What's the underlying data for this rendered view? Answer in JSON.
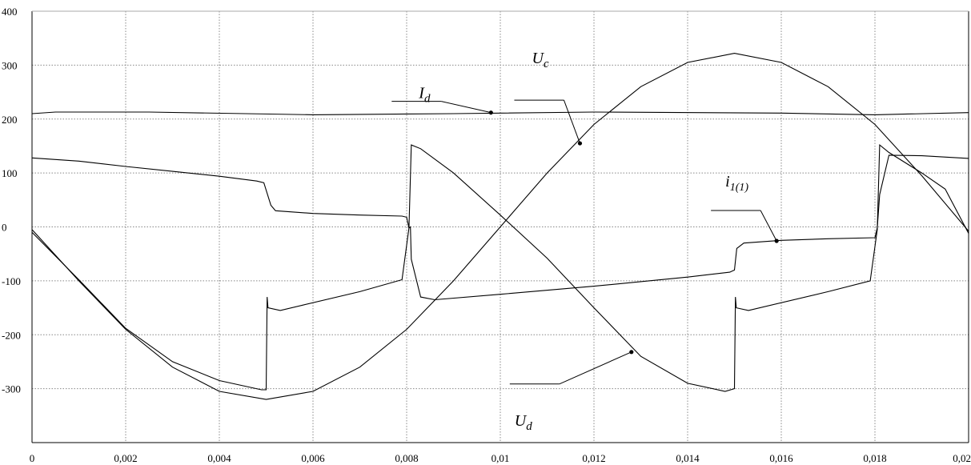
{
  "chart_data": {
    "type": "line",
    "title": "",
    "xlabel": "",
    "ylabel": "",
    "xlim": [
      0,
      0.02
    ],
    "ylim": [
      -400,
      400
    ],
    "grid": true,
    "x_ticks": [
      {
        "value": 0,
        "label": "0"
      },
      {
        "value": 0.002,
        "label": "0,002"
      },
      {
        "value": 0.004,
        "label": "0,004"
      },
      {
        "value": 0.006,
        "label": "0,006"
      },
      {
        "value": 0.008,
        "label": "0,008"
      },
      {
        "value": 0.01,
        "label": "0,01"
      },
      {
        "value": 0.012,
        "label": "0,012"
      },
      {
        "value": 0.014,
        "label": "0,014"
      },
      {
        "value": 0.016,
        "label": "0,016"
      },
      {
        "value": 0.018,
        "label": "0,018"
      },
      {
        "value": 0.02,
        "label": "0,02"
      }
    ],
    "y_ticks": [
      {
        "value": 400,
        "label": "400"
      },
      {
        "value": 300,
        "label": "300"
      },
      {
        "value": 200,
        "label": "200"
      },
      {
        "value": 100,
        "label": "100"
      },
      {
        "value": 0,
        "label": "0"
      },
      {
        "value": -100,
        "label": "-100"
      },
      {
        "value": -200,
        "label": "-200"
      },
      {
        "value": -300,
        "label": "-300"
      }
    ],
    "series": [
      {
        "name": "I",
        "sub": "d",
        "label_anchor": {
          "x": 0.0098,
          "y": 212
        },
        "points": [
          [
            0,
            210
          ],
          [
            0.0005,
            213
          ],
          [
            0.0025,
            213
          ],
          [
            0.006,
            208
          ],
          [
            0.009,
            210
          ],
          [
            0.012,
            213
          ],
          [
            0.016,
            211
          ],
          [
            0.018,
            208
          ],
          [
            0.02,
            212
          ]
        ]
      },
      {
        "name": "U",
        "sub": "c",
        "label_anchor": {
          "x": 0.0117,
          "y": 155
        },
        "points": [
          [
            0,
            -5
          ],
          [
            0.001,
            -100
          ],
          [
            0.002,
            -190
          ],
          [
            0.003,
            -260
          ],
          [
            0.004,
            -305
          ],
          [
            0.005,
            -320
          ],
          [
            0.006,
            -305
          ],
          [
            0.007,
            -260
          ],
          [
            0.008,
            -190
          ],
          [
            0.009,
            -100
          ],
          [
            0.01,
            0
          ],
          [
            0.011,
            100
          ],
          [
            0.012,
            190
          ],
          [
            0.013,
            260
          ],
          [
            0.014,
            305
          ],
          [
            0.015,
            322
          ],
          [
            0.016,
            305
          ],
          [
            0.017,
            260
          ],
          [
            0.018,
            190
          ],
          [
            0.019,
            95
          ],
          [
            0.02,
            -8
          ]
        ]
      },
      {
        "name": "U",
        "sub": "d",
        "label_anchor": {
          "x": 0.0128,
          "y": -232
        },
        "points": [
          [
            0,
            -10
          ],
          [
            0.001,
            -98
          ],
          [
            0.002,
            -188
          ],
          [
            0.003,
            -250
          ],
          [
            0.004,
            -285
          ],
          [
            0.0049,
            -302
          ],
          [
            0.005,
            -302
          ],
          [
            0.00502,
            -130
          ],
          [
            0.00504,
            -150
          ],
          [
            0.0053,
            -155
          ],
          [
            0.007,
            -120
          ],
          [
            0.0079,
            -98
          ],
          [
            0.00805,
            -2
          ],
          [
            0.0081,
            152
          ],
          [
            0.0083,
            145
          ],
          [
            0.009,
            100
          ],
          [
            0.01,
            22
          ],
          [
            0.011,
            -58
          ],
          [
            0.012,
            -150
          ],
          [
            0.013,
            -240
          ],
          [
            0.014,
            -290
          ],
          [
            0.0148,
            -305
          ],
          [
            0.015,
            -300
          ],
          [
            0.01502,
            -130
          ],
          [
            0.01504,
            -150
          ],
          [
            0.0153,
            -155
          ],
          [
            0.017,
            -120
          ],
          [
            0.0179,
            -100
          ],
          [
            0.01805,
            -5
          ],
          [
            0.0181,
            152
          ],
          [
            0.0183,
            138
          ],
          [
            0.019,
            100
          ],
          [
            0.0195,
            70
          ],
          [
            0.02,
            -12
          ]
        ]
      },
      {
        "name": "i",
        "sub": "1(1)",
        "label_anchor": {
          "x": 0.0159,
          "y": -26
        },
        "points": [
          [
            0,
            128
          ],
          [
            0.001,
            122
          ],
          [
            0.002,
            112
          ],
          [
            0.003,
            103
          ],
          [
            0.004,
            94
          ],
          [
            0.0048,
            85
          ],
          [
            0.00495,
            82
          ],
          [
            0.0051,
            40
          ],
          [
            0.0052,
            30
          ],
          [
            0.006,
            25
          ],
          [
            0.007,
            22
          ],
          [
            0.0079,
            20
          ],
          [
            0.008,
            18
          ],
          [
            0.00805,
            -2
          ],
          [
            0.00808,
            0
          ],
          [
            0.0081,
            -60
          ],
          [
            0.0083,
            -130
          ],
          [
            0.0086,
            -135
          ],
          [
            0.01,
            -125
          ],
          [
            0.012,
            -110
          ],
          [
            0.014,
            -93
          ],
          [
            0.0149,
            -84
          ],
          [
            0.015,
            -80
          ],
          [
            0.01505,
            -40
          ],
          [
            0.0152,
            -30
          ],
          [
            0.016,
            -25
          ],
          [
            0.017,
            -22
          ],
          [
            0.018,
            -20
          ],
          [
            0.01805,
            -2
          ],
          [
            0.0181,
            60
          ],
          [
            0.0183,
            133
          ],
          [
            0.019,
            132
          ],
          [
            0.02,
            127
          ]
        ]
      }
    ]
  }
}
